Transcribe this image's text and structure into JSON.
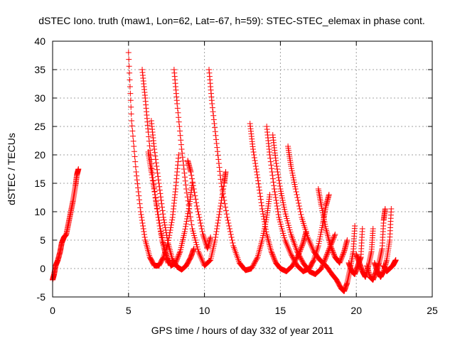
{
  "chart_data": {
    "type": "scatter",
    "title": "dSTEC Iono. truth (maw1, Lon=62, Lat=-67, h=59): STEC-STEC_elemax in phase cont.",
    "xlabel": "GPS time / hours of day 332 of year 2011",
    "ylabel": "dSTEC  / TECUs",
    "xlim": [
      0,
      25
    ],
    "ylim": [
      -5,
      40
    ],
    "xticks": [
      0,
      5,
      10,
      15,
      20,
      25
    ],
    "yticks": [
      -5,
      0,
      5,
      10,
      15,
      20,
      25,
      30,
      35,
      40
    ],
    "grid": true,
    "marker": "+",
    "color": "#ff0000",
    "series": [
      {
        "values": [
          [
            0.0,
            -2.0
          ],
          [
            0.1,
            -1.0
          ],
          [
            0.2,
            0.5
          ],
          [
            0.35,
            1.5
          ],
          [
            0.5,
            3.0
          ],
          [
            0.6,
            4.5
          ],
          [
            0.75,
            5.5
          ],
          [
            0.9,
            6.0
          ],
          [
            1.05,
            8.0
          ],
          [
            1.2,
            10.0
          ],
          [
            1.35,
            12.0
          ],
          [
            1.5,
            14.5
          ],
          [
            1.6,
            16.5
          ],
          [
            1.7,
            17.5
          ]
        ]
      },
      {
        "values": [
          [
            5.0,
            38.0
          ],
          [
            5.2,
            26.0
          ],
          [
            5.5,
            17.0
          ],
          [
            5.8,
            10.0
          ],
          [
            6.1,
            5.0
          ],
          [
            6.4,
            2.0
          ],
          [
            6.7,
            0.5
          ],
          [
            7.0,
            0.5
          ],
          [
            7.3,
            2.0
          ],
          [
            7.6,
            4.5
          ],
          [
            7.9,
            9.0
          ],
          [
            8.1,
            14.0
          ],
          [
            8.3,
            20.0
          ]
        ]
      },
      {
        "values": [
          [
            5.9,
            35.0
          ],
          [
            6.1,
            30.0
          ],
          [
            6.3,
            24.0
          ],
          [
            6.6,
            16.0
          ],
          [
            6.9,
            10.0
          ],
          [
            7.2,
            5.0
          ],
          [
            7.5,
            2.0
          ],
          [
            7.8,
            0.5
          ],
          [
            8.1,
            1.0
          ],
          [
            8.4,
            3.0
          ],
          [
            8.7,
            6.5
          ],
          [
            9.0,
            11.0
          ],
          [
            9.2,
            15.0
          ]
        ]
      },
      {
        "values": [
          [
            6.3,
            20.5
          ],
          [
            6.5,
            17.0
          ],
          [
            6.8,
            12.0
          ],
          [
            7.1,
            7.0
          ],
          [
            7.4,
            3.0
          ],
          [
            7.6,
            1.0
          ]
        ]
      },
      {
        "values": [
          [
            6.5,
            26.0
          ],
          [
            6.7,
            21.0
          ],
          [
            7.0,
            15.0
          ],
          [
            7.3,
            9.0
          ],
          [
            7.6,
            4.5
          ],
          [
            7.9,
            1.5
          ],
          [
            8.2,
            0.3
          ],
          [
            8.5,
            -0.2
          ],
          [
            8.8,
            0.5
          ],
          [
            9.1,
            2.0
          ],
          [
            9.3,
            3.5
          ]
        ]
      },
      {
        "values": [
          [
            8.0,
            35.0
          ],
          [
            8.2,
            29.0
          ],
          [
            8.5,
            21.0
          ],
          [
            8.8,
            14.0
          ],
          [
            9.2,
            7.0
          ],
          [
            9.6,
            3.0
          ],
          [
            10.0,
            0.5
          ],
          [
            10.4,
            1.5
          ],
          [
            10.7,
            5.0
          ],
          [
            11.0,
            10.0
          ],
          [
            11.3,
            15.0
          ],
          [
            11.4,
            17.0
          ]
        ]
      },
      {
        "values": [
          [
            10.3,
            35.0
          ],
          [
            10.5,
            29.0
          ],
          [
            10.8,
            22.0
          ],
          [
            11.1,
            15.0
          ],
          [
            11.5,
            9.0
          ],
          [
            11.9,
            4.0
          ],
          [
            12.3,
            1.0
          ],
          [
            12.7,
            -0.3
          ],
          [
            13.1,
            0.0
          ],
          [
            13.5,
            2.0
          ],
          [
            13.8,
            5.0
          ],
          [
            14.1,
            9.0
          ],
          [
            14.3,
            13.0
          ]
        ]
      },
      {
        "values": [
          [
            8.9,
            19.0
          ],
          [
            9.1,
            17.0
          ],
          [
            9.5,
            11.0
          ],
          [
            9.9,
            6.0
          ],
          [
            10.2,
            3.5
          ],
          [
            10.4,
            5.5
          ]
        ]
      },
      {
        "values": [
          [
            13.0,
            25.5
          ],
          [
            13.2,
            21.0
          ],
          [
            13.5,
            16.0
          ],
          [
            13.8,
            10.5
          ],
          [
            14.1,
            6.0
          ],
          [
            14.4,
            3.0
          ],
          [
            14.7,
            1.0
          ],
          [
            15.0,
            0.0
          ],
          [
            15.4,
            -0.5
          ],
          [
            15.8,
            0.5
          ],
          [
            16.2,
            2.5
          ],
          [
            16.5,
            4.5
          ],
          [
            16.7,
            6.5
          ]
        ]
      },
      {
        "values": [
          [
            14.1,
            25.0
          ],
          [
            14.3,
            20.0
          ],
          [
            14.6,
            14.0
          ],
          [
            14.9,
            9.0
          ],
          [
            15.3,
            5.0
          ],
          [
            15.7,
            2.5
          ],
          [
            16.1,
            0.5
          ],
          [
            16.5,
            -0.5
          ],
          [
            16.9,
            0.0
          ],
          [
            17.2,
            1.5
          ],
          [
            17.5,
            4.0
          ],
          [
            17.8,
            8.0
          ],
          [
            18.0,
            11.0
          ],
          [
            18.2,
            13.0
          ]
        ]
      },
      {
        "values": [
          [
            14.5,
            23.5
          ],
          [
            14.7,
            19.0
          ],
          [
            15.0,
            14.0
          ],
          [
            15.3,
            10.0
          ],
          [
            15.7,
            6.0
          ],
          [
            16.1,
            3.0
          ],
          [
            16.5,
            1.0
          ],
          [
            16.9,
            -0.5
          ],
          [
            17.3,
            -1.0
          ],
          [
            17.7,
            0.0
          ],
          [
            18.0,
            2.0
          ],
          [
            18.3,
            4.0
          ],
          [
            18.6,
            6.0
          ]
        ]
      },
      {
        "values": [
          [
            15.5,
            21.5
          ],
          [
            15.7,
            18.0
          ],
          [
            16.0,
            14.0
          ],
          [
            16.4,
            9.0
          ],
          [
            16.8,
            5.5
          ],
          [
            17.2,
            3.0
          ],
          [
            17.6,
            1.5
          ],
          [
            18.0,
            0.5
          ],
          [
            18.4,
            -1.0
          ],
          [
            18.7,
            -2.0
          ],
          [
            19.0,
            -3.5
          ],
          [
            19.2,
            -4.0
          ],
          [
            19.4,
            -2.5
          ],
          [
            19.6,
            0.0
          ],
          [
            19.8,
            3.0
          ],
          [
            19.9,
            7.5
          ]
        ]
      },
      {
        "values": [
          [
            17.5,
            14.0
          ],
          [
            17.7,
            11.0
          ],
          [
            18.0,
            7.0
          ],
          [
            18.3,
            4.0
          ],
          [
            18.6,
            2.0
          ],
          [
            18.9,
            1.0
          ],
          [
            19.2,
            3.0
          ],
          [
            19.4,
            5.0
          ]
        ]
      },
      {
        "values": [
          [
            19.5,
            1.0
          ],
          [
            19.7,
            -0.5
          ],
          [
            19.9,
            -1.0
          ],
          [
            20.1,
            0.5
          ],
          [
            20.3,
            2.0
          ],
          [
            20.4,
            7.0
          ]
        ]
      },
      {
        "values": [
          [
            20.0,
            2.5
          ],
          [
            20.2,
            1.0
          ],
          [
            20.4,
            -0.5
          ],
          [
            20.6,
            -1.5
          ],
          [
            20.8,
            0.5
          ],
          [
            21.0,
            3.0
          ],
          [
            21.1,
            7.0
          ]
        ]
      },
      {
        "values": [
          [
            20.7,
            0.5
          ],
          [
            20.9,
            -1.5
          ],
          [
            21.1,
            -2.0
          ],
          [
            21.3,
            -0.5
          ],
          [
            21.5,
            1.0
          ],
          [
            21.7,
            3.5
          ],
          [
            21.8,
            8.5
          ],
          [
            21.9,
            10.5
          ]
        ]
      },
      {
        "values": [
          [
            21.2,
            1.0
          ],
          [
            21.4,
            -0.5
          ],
          [
            21.6,
            -1.5
          ],
          [
            21.8,
            -0.5
          ],
          [
            22.0,
            1.5
          ],
          [
            22.2,
            5.0
          ],
          [
            22.3,
            10.5
          ]
        ]
      },
      {
        "values": [
          [
            21.8,
            0.5
          ],
          [
            22.0,
            -0.5
          ],
          [
            22.2,
            0.0
          ],
          [
            22.4,
            0.5
          ],
          [
            22.5,
            1.0
          ],
          [
            22.6,
            1.5
          ]
        ]
      }
    ]
  }
}
